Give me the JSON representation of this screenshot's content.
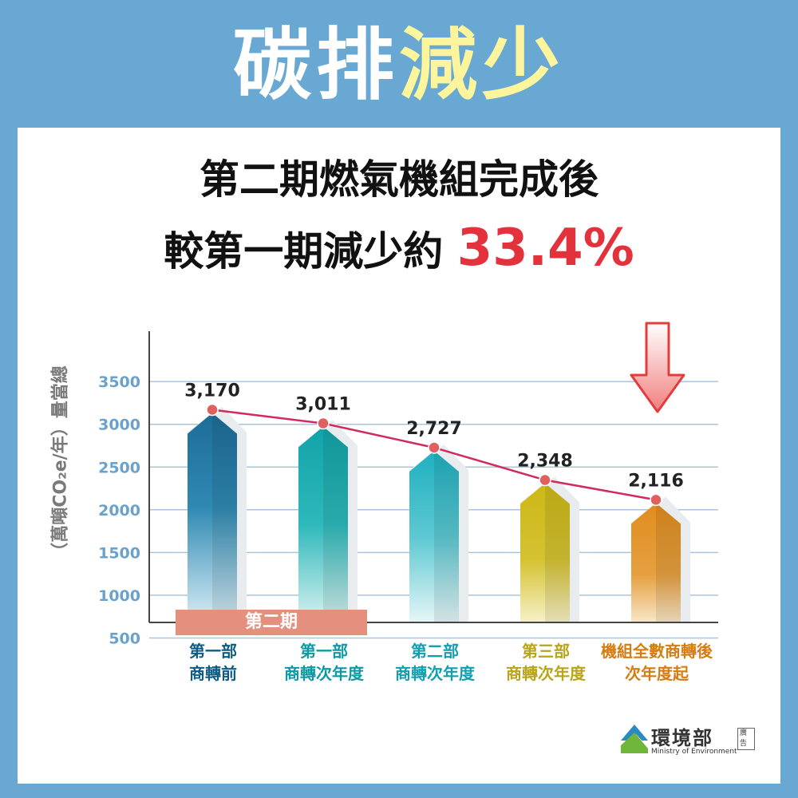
{
  "headline": {
    "part1": "碳排",
    "part2": "減少"
  },
  "subtitle": {
    "line1": "第二期燃氣機組完成後",
    "line2_prefix": "較第一期減少約 ",
    "line2_highlight": "33.4%"
  },
  "chart_data": {
    "type": "bar",
    "ylabel": "（萬噸CO₂e/年）量當總",
    "yticks": [
      500,
      1000,
      1500,
      2000,
      2500,
      3000,
      3500
    ],
    "ylim": [
      0,
      3500
    ],
    "grid": true,
    "categories": [
      {
        "line1": "第一部",
        "line2": "商轉前"
      },
      {
        "line1": "第一部",
        "line2": "商轉次年度"
      },
      {
        "line1": "第二部",
        "line2": "商轉次年度"
      },
      {
        "line1": "第三部",
        "line2": "商轉次年度"
      },
      {
        "line1": "機組全數商轉後",
        "line2": "次年度起"
      }
    ],
    "values": [
      3170,
      3011,
      2727,
      2348,
      2116
    ],
    "value_labels": [
      "3,170",
      "3,011",
      "2,727",
      "2,348",
      "2,116"
    ],
    "bar_colors": [
      "#1d6c98",
      "#11a3a8",
      "#1fb0c0",
      "#cdb816",
      "#e08c1c"
    ],
    "label_colors": [
      "#0e5c84",
      "#0e9aa3",
      "#129fb0",
      "#b9a51a",
      "#d67d12"
    ],
    "trend_line_color": "#d12a5f",
    "phase_label": "第二期"
  },
  "logo": {
    "name": "環境部",
    "english": "Ministry of Environment",
    "tag": "廣告"
  }
}
